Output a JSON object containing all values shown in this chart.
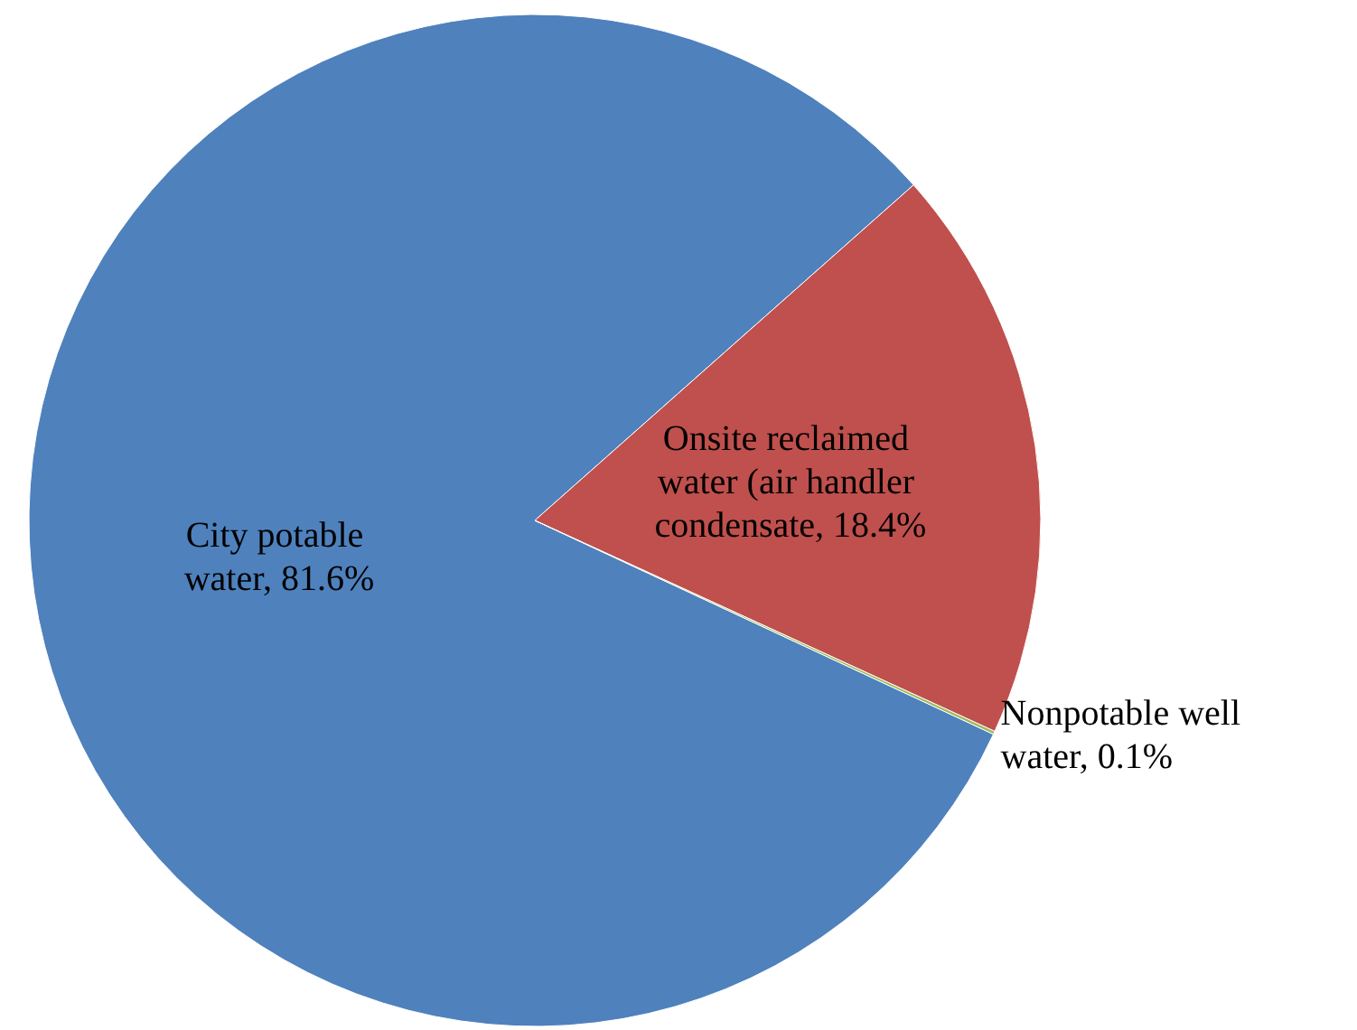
{
  "chart_data": {
    "type": "pie",
    "categories": [
      "City potable water, 81.6%",
      "Onsite reclaimed water (air handler condensate, 18.4%",
      "Nonpotable well water, 0.1%"
    ],
    "values": [
      81.6,
      18.4,
      0.1
    ],
    "colors": [
      "#4f81bd",
      "#c0504d",
      "#9bbb59"
    ]
  }
}
